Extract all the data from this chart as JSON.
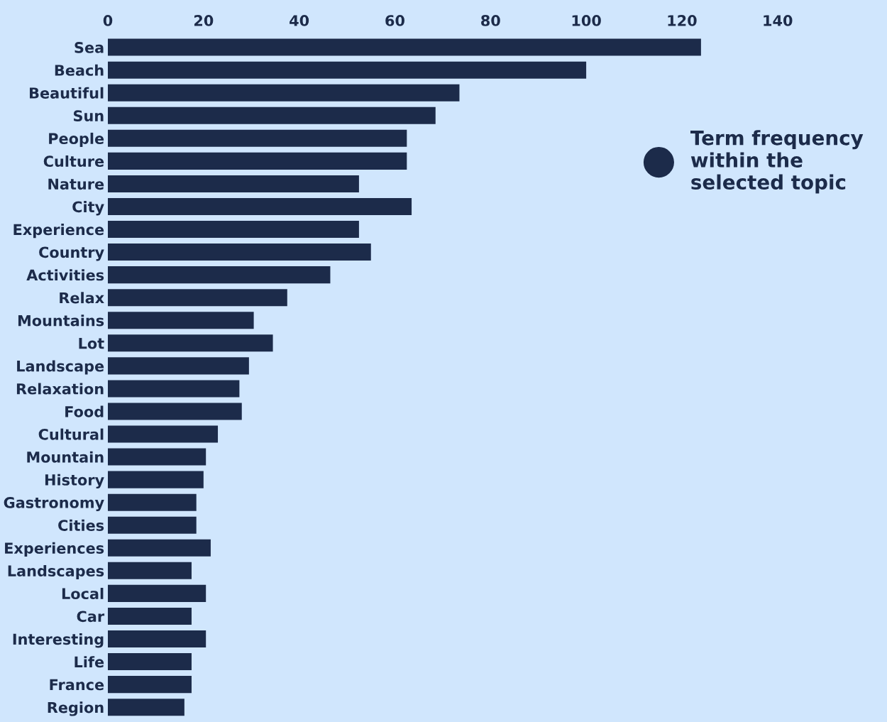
{
  "chart_data": {
    "type": "bar",
    "orientation": "horizontal",
    "categories": [
      "Sea",
      "Beach",
      "Beautiful",
      "Sun",
      "People",
      "Culture",
      "Nature",
      "City",
      "Experience",
      "Country",
      "Activities",
      "Relax",
      "Mountains",
      "Lot",
      "Landscape",
      "Relaxation",
      "Food",
      "Cultural",
      "Mountain",
      "History",
      "Gastronomy",
      "Cities",
      "Experiences",
      "Landscapes",
      "Local",
      "Car",
      "Interesting",
      "Life",
      "France",
      "Region"
    ],
    "series": [
      {
        "name": "Term frequency\nwithin the\nselected topic",
        "color": "#1c2b4a",
        "values": [
          124,
          100,
          73.5,
          68.5,
          62.5,
          62.5,
          52.5,
          63.5,
          52.5,
          55,
          46.5,
          37.5,
          30.5,
          34.5,
          29.5,
          27.5,
          28,
          23,
          20.5,
          20,
          18.5,
          18.5,
          21.5,
          17.5,
          20.5,
          17.5,
          20.5,
          17.5,
          17.5,
          16
        ]
      }
    ],
    "xlim": [
      0,
      140
    ],
    "xticks": [
      0,
      20,
      40,
      60,
      80,
      100,
      120,
      140
    ],
    "legend": "top right",
    "grid": false
  }
}
